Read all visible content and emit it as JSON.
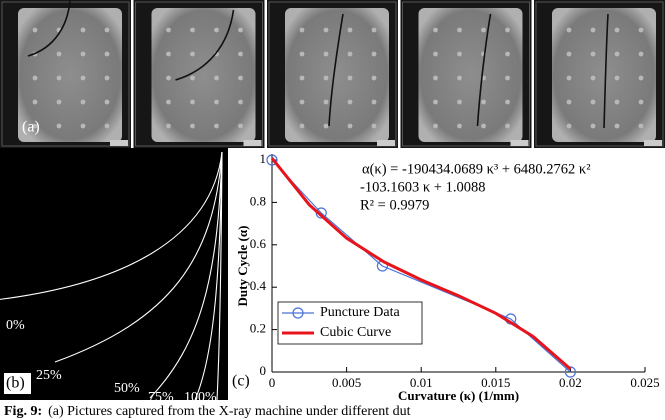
{
  "panel_a": {
    "label": "(a)"
  },
  "panel_b": {
    "label": "(b)",
    "curve_labels": [
      "0%",
      "25%",
      "50%",
      "75%",
      "100%"
    ]
  },
  "chart_data": {
    "type": "line",
    "panel_label": "(c)",
    "xlabel": "Curvature (κ) (1/mm)",
    "ylabel": "Duty Cycle (α)",
    "annotations": [
      "α(κ) = -190434.0689 κ³ + 6480.2762 κ²",
      "-103.1603 κ + 1.0088",
      "R² = 0.9979"
    ],
    "xlim": [
      0,
      0.025
    ],
    "xticks": [
      0,
      0.005,
      0.01,
      0.015,
      0.02,
      0.025
    ],
    "ylim": [
      0,
      1
    ],
    "yticks": [
      0,
      0.2,
      0.4,
      0.6,
      0.8,
      1
    ],
    "legend": "lower left",
    "series": [
      {
        "name": "Puncture Data",
        "color": "#4a72d8",
        "marker": "circle",
        "x": [
          0,
          0.0033,
          0.0074,
          0.016,
          0.02
        ],
        "values": [
          1,
          0.75,
          0.5,
          0.25,
          0
        ]
      },
      {
        "name": "Cubic Curve",
        "color": "#e8141c",
        "x": [
          0,
          0.0025,
          0.005,
          0.0075,
          0.01,
          0.0125,
          0.015,
          0.0175,
          0.02
        ],
        "values": [
          1.0088,
          0.7884,
          0.6312,
          0.5193,
          0.4348,
          0.3599,
          0.2768,
          0.1675,
          0.0142
        ]
      }
    ]
  },
  "caption": {
    "label": "Fig. 9:",
    "text": "(a) Pictures captured from the X-ray machine under different dut"
  }
}
